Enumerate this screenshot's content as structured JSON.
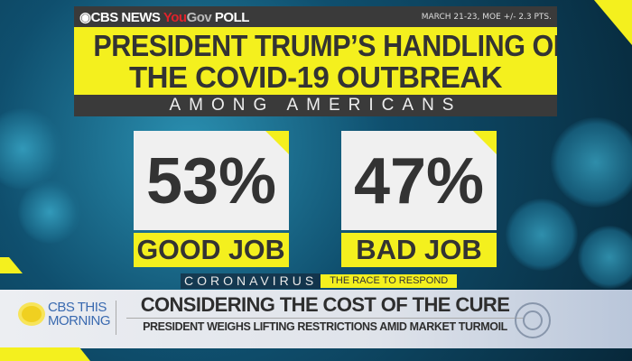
{
  "poll_header": {
    "brand_cbs": "CBS NEWS",
    "brand_you": "You",
    "brand_gov": "Gov",
    "brand_poll": "POLL",
    "meta": "MARCH 21-23, MOE +/- 2.3 PTS."
  },
  "title": {
    "line1": "PRESIDENT TRUMP’S HANDLING OF",
    "line2": "THE COVID-19 OUTBREAK",
    "subtitle": "AMONG AMERICANS"
  },
  "results": [
    {
      "value": "53%",
      "label": "GOOD JOB",
      "percent": 53
    },
    {
      "value": "47%",
      "label": "BAD JOB",
      "percent": 47
    }
  ],
  "strip": {
    "topic": "CORONAVIRUS",
    "tag": "THE RACE TO RESPOND"
  },
  "lower_third": {
    "show_line1": "CBS THIS",
    "show_line2": "MORNING",
    "headline": "CONSIDERING THE COST OF THE CURE",
    "subheadline": "PRESIDENT WEIGHS LIFTING RESTRICTIONS AMID MARKET TURMOIL"
  },
  "colors": {
    "yellow": "#f4f01e",
    "dark": "#3a3a3a",
    "text": "#333333"
  }
}
